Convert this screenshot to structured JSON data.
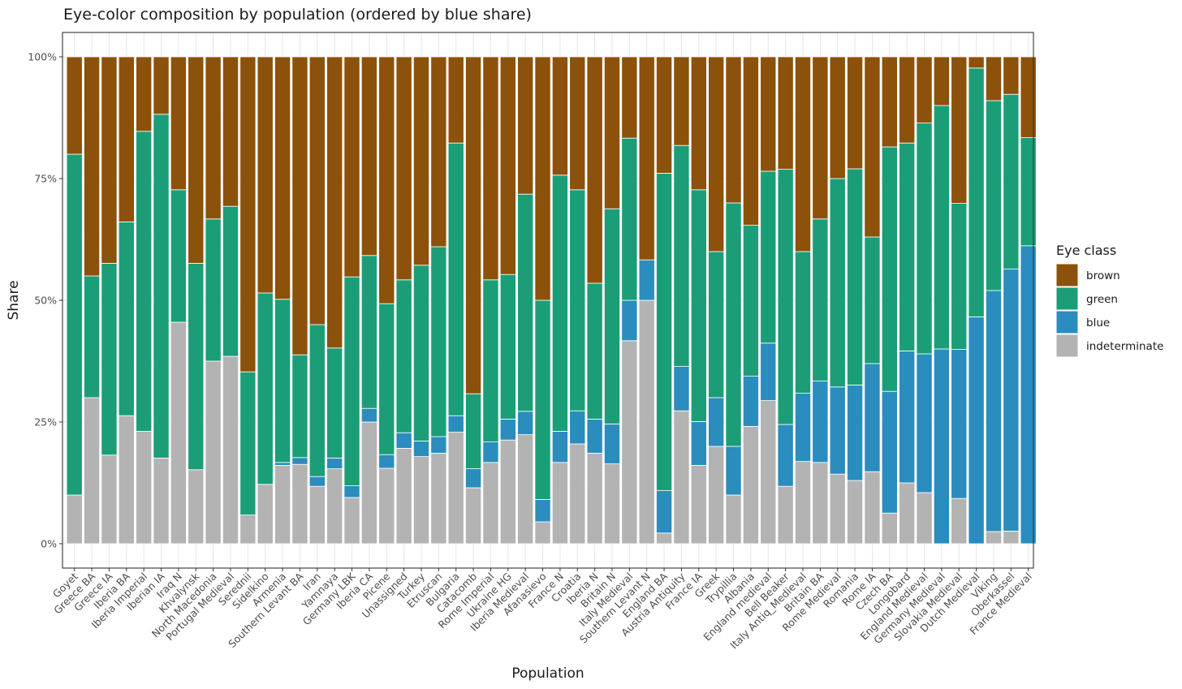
{
  "chart_data": {
    "type": "bar",
    "stacked": true,
    "title": "Eye-color composition by population (ordered by blue share)",
    "xlabel": "Population",
    "ylabel": "Share",
    "ylim": [
      0,
      1
    ],
    "y_ticks": [
      0,
      0.25,
      0.5,
      0.75,
      1
    ],
    "y_tick_labels": [
      "0%",
      "25%",
      "50%",
      "75%",
      "100%"
    ],
    "grid": true,
    "legend_title": "Eye class",
    "legend_position": "right",
    "stack_order_bottom_to_top": [
      "indeterminate",
      "blue",
      "green",
      "brown"
    ],
    "colors": {
      "brown": "#8c510a",
      "green": "#1b9e77",
      "blue": "#2b8cbe",
      "indeterminate": "#b3b3b3"
    },
    "categories": [
      "Goyet",
      "Greece BA",
      "Greece IA",
      "Iberia BA",
      "Iberia Imperial",
      "Iberian IA",
      "Iraq N",
      "Khvalynsk",
      "North Macedonia",
      "Portugal Medieval",
      "Serednii",
      "Sidelkino",
      "Armenia",
      "Southern Levant BA",
      "Iran",
      "Yamnaya",
      "Germany LBK",
      "Iberia CA",
      "Picene",
      "Unassigned",
      "Turkey",
      "Etruscan",
      "Bulgaria",
      "Catacomb",
      "Rome Imperial",
      "Ukraine HG",
      "Iberia Medieval",
      "Afanasievo",
      "France N",
      "Croatia",
      "Iberia N",
      "Britain N",
      "Italy Medieval",
      "Southern Levant N",
      "England BA",
      "Austria Antiquity",
      "France IA",
      "Greek",
      "Trypillia",
      "Albania",
      "England medieval",
      "Bell Beaker",
      "Italy Antiq_Medieval",
      "Britain BA",
      "Rome Medieval",
      "Romania",
      "Rome IA",
      "Czech BA",
      "Longobard",
      "England Medieval",
      "Germany Medieval",
      "Slovakia Medieval",
      "Dutch Medieval",
      "Viking",
      "Oberkassel",
      "France Medieval"
    ],
    "series": [
      {
        "name": "indeterminate",
        "values": [
          0.1,
          0.3,
          0.182,
          0.263,
          0.231,
          0.176,
          0.455,
          0.152,
          0.375,
          0.385,
          0.059,
          0.122,
          0.161,
          0.163,
          0.118,
          0.154,
          0.095,
          0.25,
          0.155,
          0.196,
          0.179,
          0.186,
          0.229,
          0.115,
          0.167,
          0.213,
          0.224,
          0.045,
          0.167,
          0.205,
          0.186,
          0.164,
          0.417,
          0.5,
          0.022,
          0.273,
          0.161,
          0.2,
          0.1,
          0.241,
          0.294,
          0.118,
          0.169,
          0.167,
          0.143,
          0.13,
          0.148,
          0.063,
          0.125,
          0.105,
          0.0,
          0.093,
          0.0,
          0.025,
          0.026,
          0.0
        ]
      },
      {
        "name": "blue",
        "values": [
          0.0,
          0.0,
          0.0,
          0.0,
          0.0,
          0.0,
          0.0,
          0.0,
          0.0,
          0.0,
          0.0,
          0.0,
          0.006,
          0.014,
          0.02,
          0.022,
          0.024,
          0.028,
          0.028,
          0.032,
          0.032,
          0.034,
          0.034,
          0.039,
          0.042,
          0.043,
          0.048,
          0.046,
          0.064,
          0.068,
          0.07,
          0.082,
          0.083,
          0.083,
          0.087,
          0.091,
          0.09,
          0.1,
          0.1,
          0.103,
          0.118,
          0.127,
          0.14,
          0.167,
          0.179,
          0.196,
          0.222,
          0.25,
          0.271,
          0.285,
          0.4,
          0.306,
          0.466,
          0.495,
          0.538,
          0.612
        ]
      },
      {
        "name": "green",
        "values": [
          0.7,
          0.25,
          0.394,
          0.398,
          0.616,
          0.706,
          0.272,
          0.424,
          0.292,
          0.308,
          0.294,
          0.393,
          0.335,
          0.211,
          0.312,
          0.226,
          0.429,
          0.314,
          0.31,
          0.314,
          0.361,
          0.39,
          0.56,
          0.154,
          0.333,
          0.297,
          0.446,
          0.409,
          0.526,
          0.454,
          0.279,
          0.442,
          0.333,
          0.0,
          0.652,
          0.454,
          0.476,
          0.3,
          0.5,
          0.31,
          0.353,
          0.524,
          0.291,
          0.333,
          0.428,
          0.444,
          0.26,
          0.502,
          0.427,
          0.474,
          0.5,
          0.3,
          0.511,
          0.39,
          0.359,
          0.222
        ]
      },
      {
        "name": "brown",
        "values": [
          0.2,
          0.45,
          0.424,
          0.339,
          0.153,
          0.118,
          0.273,
          0.424,
          0.333,
          0.307,
          0.647,
          0.485,
          0.498,
          0.612,
          0.55,
          0.598,
          0.452,
          0.408,
          0.507,
          0.458,
          0.428,
          0.39,
          0.177,
          0.692,
          0.458,
          0.447,
          0.282,
          0.5,
          0.243,
          0.273,
          0.465,
          0.312,
          0.167,
          0.417,
          0.239,
          0.182,
          0.273,
          0.4,
          0.3,
          0.346,
          0.235,
          0.231,
          0.4,
          0.333,
          0.25,
          0.23,
          0.37,
          0.185,
          0.177,
          0.136,
          0.1,
          0.301,
          0.023,
          0.09,
          0.077,
          0.166
        ]
      }
    ]
  }
}
